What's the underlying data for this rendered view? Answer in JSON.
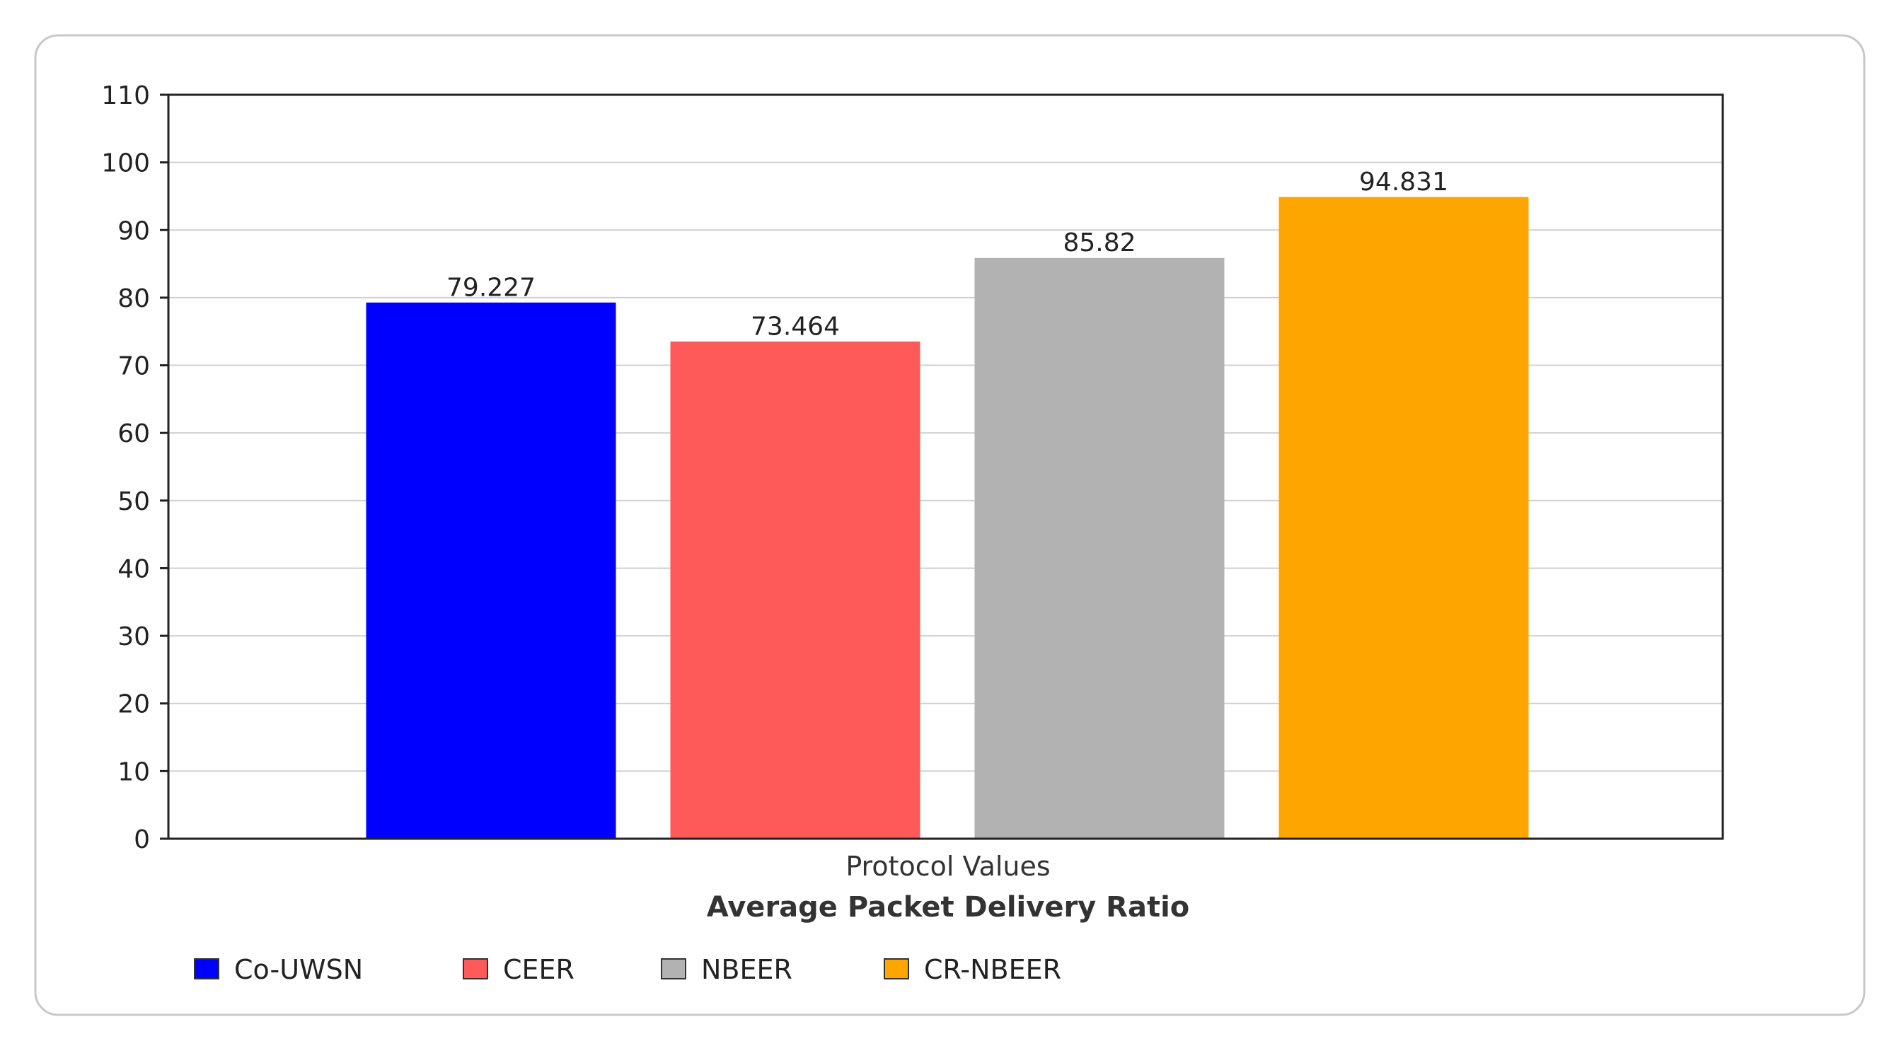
{
  "chart_data": {
    "type": "bar",
    "title": "Average Packet Delivery Ratio",
    "xlabel": "Protocol Values",
    "ylabel": "",
    "ylim": [
      0,
      110
    ],
    "yticks": [
      0,
      10,
      20,
      30,
      40,
      50,
      60,
      70,
      80,
      90,
      100,
      110
    ],
    "grid": true,
    "legend_position": "bottom",
    "series": [
      {
        "name": "Co-UWSN",
        "value": 79.227,
        "label": "79.227",
        "color": "#0000ff"
      },
      {
        "name": "CEER",
        "value": 73.464,
        "label": "73.464",
        "color": "#ff5a5a"
      },
      {
        "name": "NBEER",
        "value": 85.82,
        "label": "85.82",
        "color": "#b2b2b2"
      },
      {
        "name": "CR-NBEER",
        "value": 94.831,
        "label": "94.831",
        "color": "#ffa500"
      }
    ]
  }
}
